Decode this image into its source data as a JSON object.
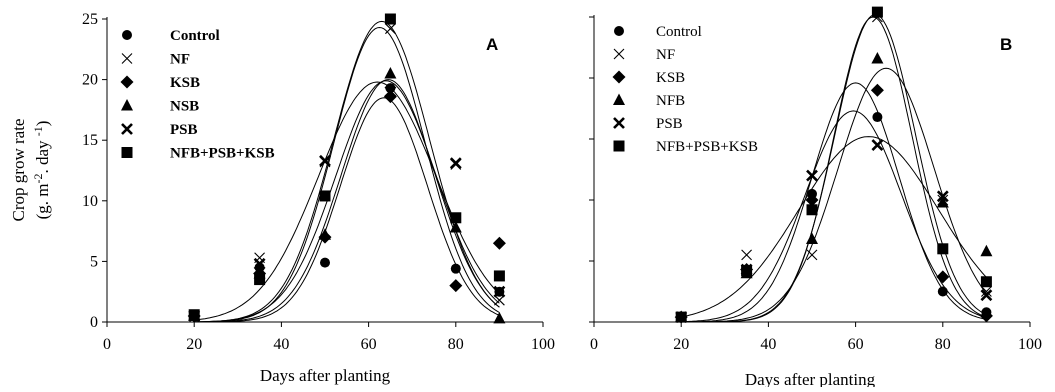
{
  "chart_data": [
    {
      "type": "scatter",
      "panel_label": "A",
      "xlabel": "Days after planting",
      "ylabel_line1": "Crop grow rate",
      "ylabel_line2": "(g. m-2. day -1)",
      "xlim": [
        0,
        100
      ],
      "ylim": [
        0,
        25
      ],
      "xticks": [
        0,
        20,
        40,
        60,
        80,
        100
      ],
      "yticks": [
        0,
        5,
        10,
        15,
        20,
        25
      ],
      "grid": false,
      "legend_position": "top-left",
      "series": [
        {
          "name": "Control",
          "marker": "circle",
          "x": [
            20,
            35,
            50,
            65,
            80,
            90
          ],
          "y": [
            0.6,
            4.5,
            4.9,
            19.3,
            4.4,
            2.5
          ],
          "curve": {
            "a": 18.5,
            "b": 63.5,
            "c": 10.0
          }
        },
        {
          "name": "NF",
          "marker": "x-thin",
          "x": [
            20,
            35,
            50,
            65,
            80,
            90
          ],
          "y": [
            0.5,
            5.3,
            13.2,
            24.2,
            13.0,
            1.8
          ],
          "curve": {
            "a": 24.3,
            "b": 62.5,
            "c": 10.5
          }
        },
        {
          "name": "KSB",
          "marker": "diamond",
          "x": [
            20,
            35,
            50,
            65,
            80,
            90
          ],
          "y": [
            0.5,
            4.0,
            7.0,
            18.6,
            3.0,
            6.5
          ],
          "curve": {
            "a": 19.9,
            "b": 64.0,
            "c": 11.5
          }
        },
        {
          "name": "NSB",
          "marker": "triangle",
          "x": [
            20,
            35,
            50,
            65,
            80,
            90
          ],
          "y": [
            0.5,
            4.0,
            7.2,
            20.5,
            7.8,
            0.3
          ],
          "curve": {
            "a": 20.0,
            "b": 64.5,
            "c": 10.8
          }
        },
        {
          "name": "PSB",
          "marker": "x-bold",
          "x": [
            20,
            35,
            50,
            65,
            80,
            90
          ],
          "y": [
            0.5,
            4.8,
            13.3,
            19.0,
            13.1,
            2.5
          ],
          "curve": {
            "a": 19.8,
            "b": 62.0,
            "c": 13.5
          }
        },
        {
          "name": "NFB+PSB+KSB",
          "marker": "square",
          "x": [
            20,
            35,
            50,
            65,
            80,
            90
          ],
          "y": [
            0.6,
            3.5,
            10.4,
            25.0,
            8.6,
            3.8
          ],
          "curve": {
            "a": 24.8,
            "b": 63.0,
            "c": 11.0
          }
        }
      ]
    },
    {
      "type": "scatter",
      "panel_label": "B",
      "xlabel": "Days after planting",
      "xlim": [
        0,
        100
      ],
      "ylim": [
        0,
        25
      ],
      "xticks": [
        0,
        20,
        40,
        60,
        80,
        100
      ],
      "grid": false,
      "legend_position": "top-left",
      "series": [
        {
          "name": "Control",
          "marker": "circle",
          "x": [
            20,
            35,
            50,
            65,
            80,
            90
          ],
          "y": [
            0.4,
            4.3,
            10.5,
            16.8,
            2.5,
            0.8
          ],
          "curve": {
            "a": 17.3,
            "b": 59.5,
            "c": 11.0
          }
        },
        {
          "name": "NF",
          "marker": "x-thin",
          "x": [
            20,
            35,
            50,
            65,
            80,
            90
          ],
          "y": [
            0.4,
            5.5,
            5.5,
            25.0,
            10.0,
            2.5
          ],
          "curve": {
            "a": 25.0,
            "b": 64.0,
            "c": 9.0
          }
        },
        {
          "name": "KSB",
          "marker": "diamond",
          "x": [
            20,
            35,
            50,
            65,
            80,
            90
          ],
          "y": [
            0.4,
            4.3,
            10.0,
            19.0,
            3.7,
            0.5
          ],
          "curve": {
            "a": 19.6,
            "b": 60.0,
            "c": 10.0
          }
        },
        {
          "name": "NFB",
          "marker": "triangle",
          "x": [
            20,
            35,
            50,
            65,
            80,
            90
          ],
          "y": [
            0.4,
            4.0,
            6.8,
            21.6,
            9.8,
            5.8
          ],
          "curve": {
            "a": 20.8,
            "b": 67.0,
            "c": 11.0
          }
        },
        {
          "name": "PSB",
          "marker": "x-bold",
          "x": [
            20,
            35,
            50,
            65,
            80,
            90
          ],
          "y": [
            0.4,
            4.3,
            12.0,
            14.5,
            10.3,
            2.2
          ],
          "curve": {
            "a": 15.2,
            "b": 63.0,
            "c": 16.0
          }
        },
        {
          "name": "NFB+PSB+KSB",
          "marker": "square",
          "x": [
            20,
            35,
            50,
            65,
            80,
            90
          ],
          "y": [
            0.4,
            4.2,
            9.2,
            25.4,
            6.0,
            3.3
          ],
          "curve": {
            "a": 25.2,
            "b": 64.5,
            "c": 9.3
          }
        }
      ]
    }
  ]
}
